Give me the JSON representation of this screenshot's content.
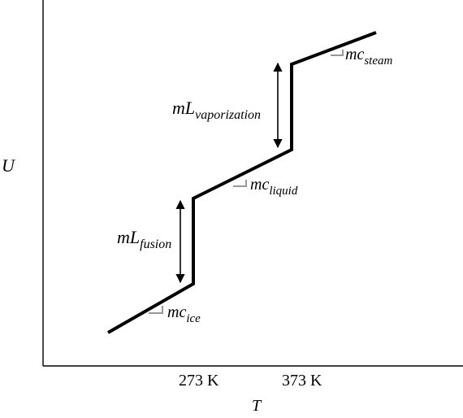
{
  "axes": {
    "y_label": "U",
    "x_label": "T",
    "x_ticks": [
      "273 K",
      "373 K"
    ]
  },
  "segment_labels": {
    "ice": {
      "base": "mc",
      "sub": "ice"
    },
    "liquid": {
      "base": "mc",
      "sub": "liquid"
    },
    "steam": {
      "base": "mc",
      "sub": "steam"
    }
  },
  "transition_labels": {
    "fusion": {
      "base": "mL",
      "sub": "fusion"
    },
    "vaporization": {
      "base": "mL",
      "sub": "vaporization"
    }
  },
  "colors": {
    "curve": "#000000",
    "axis": "#000000",
    "slope_marker": "#999999"
  }
}
